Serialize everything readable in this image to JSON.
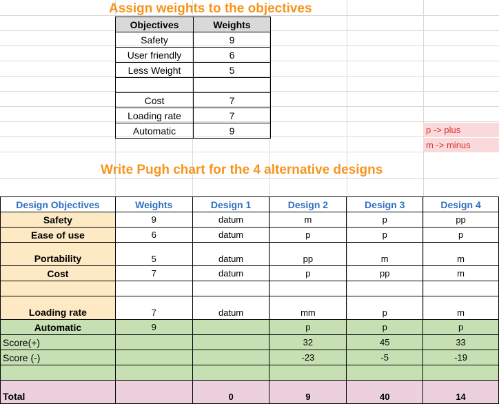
{
  "title_weights": "Assign weights to the objectives",
  "title_pugh": "Write Pugh chart for the 4 alternative designs",
  "weights_table": {
    "headers": [
      "Objectives",
      "Weights"
    ],
    "rows": [
      [
        "Safety",
        "9"
      ],
      [
        "User friendly",
        "6"
      ],
      [
        "Less Weight",
        "5"
      ],
      [
        "",
        ""
      ],
      [
        "Cost",
        "7"
      ],
      [
        "Loading rate",
        "7"
      ],
      [
        "Automatic",
        "9"
      ]
    ]
  },
  "legend": {
    "plus": "p -> plus",
    "minus": "m -> minus"
  },
  "pugh": {
    "headers": [
      "Design Objectives",
      "Weights",
      "Design 1",
      "Design 2",
      "Design 3",
      "Design 4"
    ],
    "rows": [
      [
        "Safety",
        "9",
        "datum",
        "m",
        "p",
        "pp"
      ],
      [
        "Ease of use",
        "6",
        "datum",
        "p",
        "p",
        "p"
      ],
      [
        "Portability",
        "5",
        "datum",
        "pp",
        "m",
        "m"
      ],
      [
        "Cost",
        "7",
        "datum",
        "p",
        "pp",
        "m"
      ],
      [
        "",
        "",
        "",
        "",
        "",
        ""
      ],
      [
        "Loading rate",
        "7",
        "datum",
        "mm",
        "p",
        "m"
      ],
      [
        "Automatic",
        "9",
        "",
        "p",
        "p",
        "p"
      ],
      [
        "Score(+)",
        "",
        "",
        "32",
        "45",
        "33"
      ],
      [
        "Score (-)",
        "",
        "",
        "-23",
        "-5",
        "-19"
      ],
      [
        "",
        "",
        "",
        "",
        "",
        ""
      ],
      [
        "Total",
        "",
        "0",
        "9",
        "40",
        "14"
      ]
    ]
  },
  "colors": {
    "title": "#f7941d",
    "header_blue": "#2f6fbf",
    "objective_bg": "#fde9c4",
    "score_green": "#c6e0b4",
    "total_pink": "#ecd1dd",
    "legend_bg": "#f9d9d9",
    "legend_text": "#e03030"
  }
}
